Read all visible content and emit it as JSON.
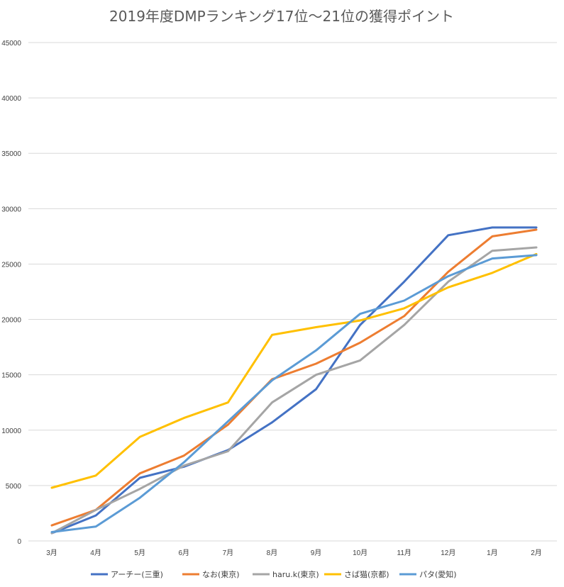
{
  "chart_data": {
    "type": "line",
    "title": "2019年度DMPランキング17位〜21位の獲得ポイント",
    "xlabel": "",
    "ylabel": "",
    "ylim": [
      0,
      45000
    ],
    "yticks": [
      0,
      5000,
      10000,
      15000,
      20000,
      25000,
      30000,
      35000,
      40000,
      45000
    ],
    "grid": true,
    "legend_position": "bottom",
    "categories": [
      "3月",
      "4月",
      "5月",
      "6月",
      "7月",
      "8月",
      "9月",
      "10月",
      "11月",
      "12月",
      "1月",
      "2月"
    ],
    "series": [
      {
        "name": "アーチー(三重)",
        "color": "#4472c4",
        "values": [
          700,
          2300,
          5700,
          6700,
          8200,
          10700,
          13700,
          19500,
          23400,
          27600,
          28300,
          28300
        ]
      },
      {
        "name": "なお(東京)",
        "color": "#ed7d31",
        "values": [
          1400,
          2800,
          6100,
          7700,
          10500,
          14600,
          16000,
          17900,
          20300,
          24300,
          27500,
          28100
        ]
      },
      {
        "name": "haru.k(東京)",
        "color": "#a5a5a5",
        "values": [
          700,
          2800,
          4700,
          6800,
          8100,
          12500,
          15000,
          16300,
          19500,
          23400,
          26200,
          26500
        ]
      },
      {
        "name": "さば猫(京都)",
        "color": "#ffc000",
        "values": [
          4800,
          5900,
          9400,
          11100,
          12500,
          18600,
          19300,
          19900,
          21000,
          22900,
          24200,
          25900
        ]
      },
      {
        "name": "パタ(愛知)",
        "color": "#5b9bd5",
        "values": [
          800,
          1300,
          3900,
          7100,
          10800,
          14500,
          17200,
          20500,
          21700,
          23900,
          25500,
          25800
        ]
      }
    ]
  }
}
